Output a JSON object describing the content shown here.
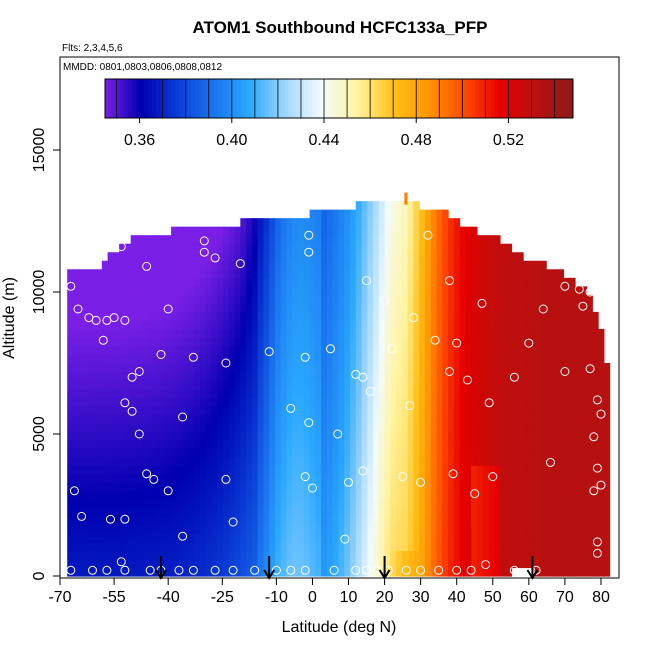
{
  "chart_data": {
    "type": "heatmap",
    "title": "ATOM1 Southbound HCFC133a_PFP",
    "flights_note": "Flts: 2,3,4,5,6",
    "dates_note": "MMDD: 0801,0803,0806,0808,0812",
    "xlabel": "Latitude (deg N)",
    "ylabel": "Altitude (m)",
    "xlim": [
      -70,
      85
    ],
    "ylim": [
      0,
      17500
    ],
    "x_ticks": [
      -70,
      -55,
      -40,
      -25,
      -10,
      0,
      10,
      20,
      30,
      40,
      50,
      60,
      70,
      80
    ],
    "y_ticks": [
      0,
      5000,
      10000,
      15000
    ],
    "colorbar": {
      "range": [
        0.345,
        0.548
      ],
      "ticks": [
        0.36,
        0.4,
        0.44,
        0.48,
        0.52
      ],
      "tick_labels": [
        "0.36",
        "0.40",
        "0.44",
        "0.48",
        "0.52"
      ],
      "colors": [
        "#7a1fe6",
        "#0000b0",
        "#0a3cd6",
        "#1a74ee",
        "#2aa8ff",
        "#9fd6ff",
        "#f2fbff",
        "#fff4a0",
        "#ffc21a",
        "#ff9400",
        "#ff4a00",
        "#e60000",
        "#b81010",
        "#8e1a1a"
      ]
    },
    "arrows_latitude": [
      -42,
      -12,
      20,
      61
    ],
    "sample_points": [
      [
        -67,
        10200
      ],
      [
        -65,
        9400
      ],
      [
        -62,
        9100
      ],
      [
        -60,
        9000
      ],
      [
        -58,
        8300
      ],
      [
        -57,
        9000
      ],
      [
        -55,
        9100
      ],
      [
        -52,
        9000
      ],
      [
        -53,
        11600
      ],
      [
        -46,
        10900
      ],
      [
        -42,
        7800
      ],
      [
        -48,
        7200
      ],
      [
        -50,
        7000
      ],
      [
        -52,
        6100
      ],
      [
        -50,
        5800
      ],
      [
        -48,
        5000
      ],
      [
        -46,
        3600
      ],
      [
        -44,
        3400
      ],
      [
        -40,
        3000
      ],
      [
        -36,
        1400
      ],
      [
        -56,
        2000
      ],
      [
        -52,
        2000
      ],
      [
        -64,
        2100
      ],
      [
        -66,
        3000
      ],
      [
        -67,
        200
      ],
      [
        -61,
        200
      ],
      [
        -57,
        200
      ],
      [
        -53,
        500
      ],
      [
        -52,
        200
      ],
      [
        -45,
        200
      ],
      [
        -42,
        200
      ],
      [
        -37,
        200
      ],
      [
        -33,
        200
      ],
      [
        -27,
        200
      ],
      [
        -22,
        200
      ],
      [
        -16,
        200
      ],
      [
        -10,
        200
      ],
      [
        -6,
        200
      ],
      [
        -2,
        200
      ],
      [
        -30,
        11400
      ],
      [
        -27,
        11200
      ],
      [
        -20,
        11000
      ],
      [
        -33,
        7700
      ],
      [
        -36,
        5600
      ],
      [
        -24,
        7500
      ],
      [
        -24,
        3400
      ],
      [
        -22,
        1900
      ],
      [
        -12,
        7900
      ],
      [
        -6,
        5900
      ],
      [
        -2,
        7700
      ],
      [
        -1,
        5400
      ],
      [
        -2,
        3500
      ],
      [
        0,
        3100
      ],
      [
        -1,
        12000
      ],
      [
        -1,
        11400
      ],
      [
        5,
        8000
      ],
      [
        7,
        5000
      ],
      [
        9,
        1300
      ],
      [
        10,
        3300
      ],
      [
        14,
        3700
      ],
      [
        12,
        7100
      ],
      [
        15,
        10400
      ],
      [
        14,
        7000
      ],
      [
        16,
        6500
      ],
      [
        20,
        9700
      ],
      [
        22,
        8000
      ],
      [
        25,
        3500
      ],
      [
        27,
        6000
      ],
      [
        28,
        9100
      ],
      [
        30,
        3300
      ],
      [
        32,
        12000
      ],
      [
        34,
        8300
      ],
      [
        38,
        10400
      ],
      [
        38,
        7200
      ],
      [
        39,
        3600
      ],
      [
        40,
        8200
      ],
      [
        43,
        6900
      ],
      [
        45,
        2900
      ],
      [
        47,
        9600
      ],
      [
        49,
        6100
      ],
      [
        50,
        3500
      ],
      [
        48,
        400
      ],
      [
        56,
        7000
      ],
      [
        60,
        8200
      ],
      [
        64,
        9400
      ],
      [
        66,
        4000
      ],
      [
        70,
        7200
      ],
      [
        70,
        10200
      ],
      [
        74,
        10100
      ],
      [
        75,
        9500
      ],
      [
        77,
        10000
      ],
      [
        77,
        7300
      ],
      [
        79,
        6200
      ],
      [
        80,
        5700
      ],
      [
        78,
        4900
      ],
      [
        79,
        3800
      ],
      [
        80,
        3200
      ],
      [
        78,
        3000
      ],
      [
        79,
        1200
      ],
      [
        79,
        800
      ],
      [
        62,
        200
      ],
      [
        56,
        200
      ],
      [
        44,
        200
      ],
      [
        40,
        200
      ],
      [
        35,
        200
      ],
      [
        30,
        200
      ],
      [
        26,
        200
      ],
      [
        21,
        200
      ],
      [
        18,
        200
      ],
      [
        15,
        200
      ],
      [
        12,
        200
      ],
      [
        6,
        200
      ],
      [
        -30,
        11800
      ],
      [
        -40,
        9400
      ]
    ]
  }
}
